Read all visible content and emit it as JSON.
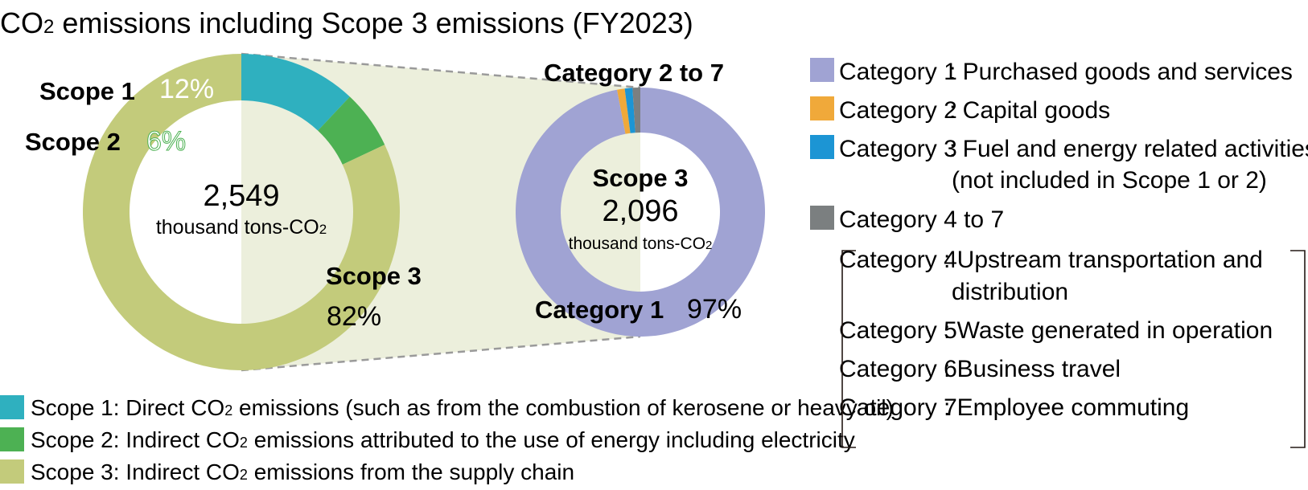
{
  "chart_data": [
    {
      "type": "pie",
      "title": "CO2 emissions including Scope 3 emissions (FY2023)",
      "center_value": "2,549",
      "center_unit": "thousand tons-CO2",
      "categories": [
        "Scope 1",
        "Scope 2",
        "Scope 3"
      ],
      "values": [
        12,
        6,
        82
      ],
      "value_labels": [
        "12%",
        "6%",
        "82%"
      ],
      "colors": [
        "#2fb0bf",
        "#4db153",
        "#c3cb7b"
      ],
      "legend": [
        {
          "prefix": "Scope 1: Direct CO",
          "sub": "2",
          "suffix": " emissions (such as from the combustion of kerosene or heavy oil)",
          "color": "#2fb0bf"
        },
        {
          "prefix": "Scope 2: Indirect CO",
          "sub": "2",
          "suffix": " emissions attributed to the use of energy including electricity",
          "color": "#4db153"
        },
        {
          "prefix": "Scope 3: Indirect CO",
          "sub": "2",
          "suffix": " emissions from the supply chain",
          "color": "#c3cb7b"
        }
      ]
    },
    {
      "type": "pie",
      "center_title": "Scope 3",
      "center_value": "2,096",
      "center_unit": "thousand tons-CO2",
      "categories": [
        "Category 1",
        "Category 2",
        "Category 3",
        "Category 4 to 7"
      ],
      "values": [
        97,
        1,
        1,
        1
      ],
      "colors": [
        "#a0a3d3",
        "#f0a93a",
        "#1c95d4",
        "#7b7f80"
      ],
      "annotations": {
        "small": "Category 2 to 7",
        "large_label": "Category 1",
        "large_pct": "97%"
      },
      "legend": [
        {
          "label": "Category 1",
          "text": ": Purchased goods and services",
          "color": "#a0a3d3"
        },
        {
          "label": "Category 2",
          "text": ": Capital goods",
          "color": "#f0a93a"
        },
        {
          "label": "Category 3",
          "text": ": Fuel and energy related activities",
          "text2": "(not included in Scope 1 or 2)",
          "color": "#1c95d4"
        },
        {
          "label": "Category 4 to 7",
          "text": "",
          "color": "#7b7f80"
        }
      ],
      "sub_legend": [
        {
          "label": "Category 4",
          "text": ": Upstream transportation and",
          "text2": "distribution"
        },
        {
          "label": "Category 5",
          "text": ": Waste generated in operation"
        },
        {
          "label": "Category 6",
          "text": ": Business travel"
        },
        {
          "label": "Category 7",
          "text": ": Employee commuting"
        }
      ]
    }
  ],
  "text": {
    "title_pre": "CO",
    "title_sub": "2",
    "title_post": " emissions including Scope 3 emissions (FY2023)",
    "unit_pre": "thousand tons-CO",
    "unit_sub": "2"
  }
}
